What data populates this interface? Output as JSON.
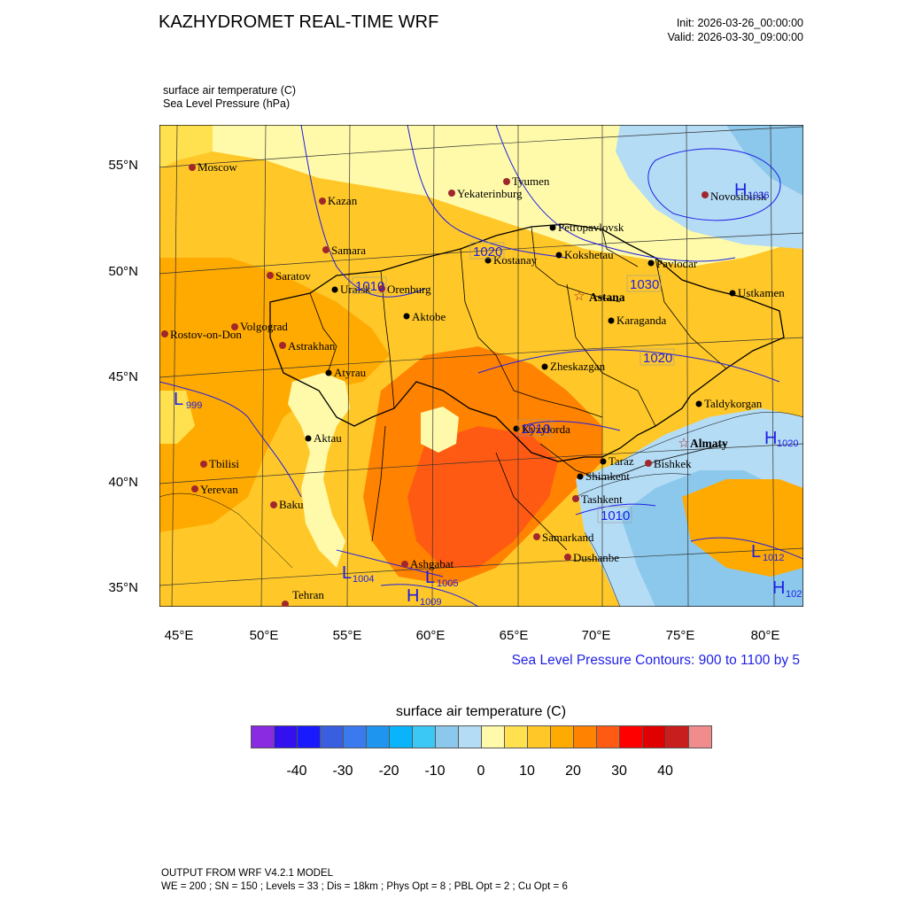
{
  "header": {
    "title": "KAZHYDROMET REAL-TIME WRF",
    "init": "Init: 2026-03-26_00:00:00",
    "valid": "Valid: 2026-03-30_09:00:00"
  },
  "fields": {
    "line1": "surface air temperature   (C)",
    "line2": "Sea Level Pressure   (hPa)"
  },
  "axes": {
    "lat_labels": [
      "55°N",
      "50°N",
      "45°N",
      "40°N",
      "35°N"
    ],
    "lon_labels": [
      "45°E",
      "50°E",
      "55°E",
      "60°E",
      "65°E",
      "70°E",
      "75°E",
      "80°E"
    ]
  },
  "contour_note": "Sea Level Pressure Contours: 900 to 1100 by 5",
  "colorbar": {
    "title": "surface air temperature  (C)",
    "labels": [
      "-40",
      "-30",
      "-20",
      "-10",
      "0",
      "10",
      "20",
      "30",
      "40"
    ],
    "colors": [
      "#8a2be2",
      "#3311ee",
      "#1a1aff",
      "#3a5ee0",
      "#3a7aee",
      "#1e96f0",
      "#0ab4fa",
      "#3cc8f5",
      "#8cc8eb",
      "#b4dcf5",
      "#fffaaa",
      "#ffe150",
      "#ffc828",
      "#ffaa00",
      "#ff8200",
      "#ff5a14",
      "#ff0000",
      "#e10000",
      "#c81e1e",
      "#f08c8c"
    ]
  },
  "map": {
    "cities": [
      {
        "name": "Moscow",
        "kind": "ref"
      },
      {
        "name": "Kazan",
        "kind": "ref"
      },
      {
        "name": "Samara",
        "kind": "ref"
      },
      {
        "name": "Saratov",
        "kind": "ref"
      },
      {
        "name": "Volgograd",
        "kind": "ref"
      },
      {
        "name": "Rostov-on-Don",
        "kind": "ref"
      },
      {
        "name": "Astrakhan",
        "kind": "ref"
      },
      {
        "name": "Tyumen",
        "kind": "ref"
      },
      {
        "name": "Yekaterinburg",
        "kind": "ref"
      },
      {
        "name": "Novosibirsk",
        "kind": "ref"
      },
      {
        "name": "Petropavlovsk",
        "kind": "kz"
      },
      {
        "name": "Kostanay",
        "kind": "kz"
      },
      {
        "name": "Kokshetau",
        "kind": "kz"
      },
      {
        "name": "Pavlodar",
        "kind": "kz"
      },
      {
        "name": "Astana",
        "kind": "capital"
      },
      {
        "name": "Uralsk",
        "kind": "kz"
      },
      {
        "name": "Orenburg",
        "kind": "ref"
      },
      {
        "name": "Aktobe",
        "kind": "kz"
      },
      {
        "name": "Ustkamen",
        "kind": "kz"
      },
      {
        "name": "Karaganda",
        "kind": "kz"
      },
      {
        "name": "Zheskazgan",
        "kind": "kz"
      },
      {
        "name": "Atyrau",
        "kind": "kz"
      },
      {
        "name": "Taldykorgan",
        "kind": "kz"
      },
      {
        "name": "Kyzylorda",
        "kind": "kz"
      },
      {
        "name": "Almaty",
        "kind": "capital"
      },
      {
        "name": "Aktau",
        "kind": "kz"
      },
      {
        "name": "Tbilisi",
        "kind": "ref"
      },
      {
        "name": "Taraz",
        "kind": "kz"
      },
      {
        "name": "Bishkek",
        "kind": "ref"
      },
      {
        "name": "Shimkent",
        "kind": "kz"
      },
      {
        "name": "Yerevan",
        "kind": "ref"
      },
      {
        "name": "Tashkent",
        "kind": "ref"
      },
      {
        "name": "Baku",
        "kind": "ref"
      },
      {
        "name": "Samarkand",
        "kind": "ref"
      },
      {
        "name": "Dushanbe",
        "kind": "ref"
      },
      {
        "name": "Ashgabat",
        "kind": "ref"
      },
      {
        "name": "Tehran",
        "kind": "ref"
      }
    ],
    "pressure_labels": [
      "1020",
      "1030",
      "1020",
      "1010",
      "1010",
      "1010"
    ],
    "pressure_centers": [
      {
        "letter": "H",
        "value": "1036"
      },
      {
        "letter": "L",
        "value": "999"
      },
      {
        "letter": "H",
        "value": "1020"
      },
      {
        "letter": "L",
        "value": "1012"
      },
      {
        "letter": "L",
        "value": "1004"
      },
      {
        "letter": "L",
        "value": "1005"
      },
      {
        "letter": "H",
        "value": "1009"
      },
      {
        "letter": "H",
        "value": "102"
      }
    ]
  },
  "footer": {
    "line1": "OUTPUT FROM WRF V4.2.1 MODEL",
    "line2": "WE = 200 ; SN = 150 ; Levels = 33 ; Dis = 18km ; Phys Opt = 8 ; PBL Opt = 2 ; Cu Opt = 6"
  }
}
